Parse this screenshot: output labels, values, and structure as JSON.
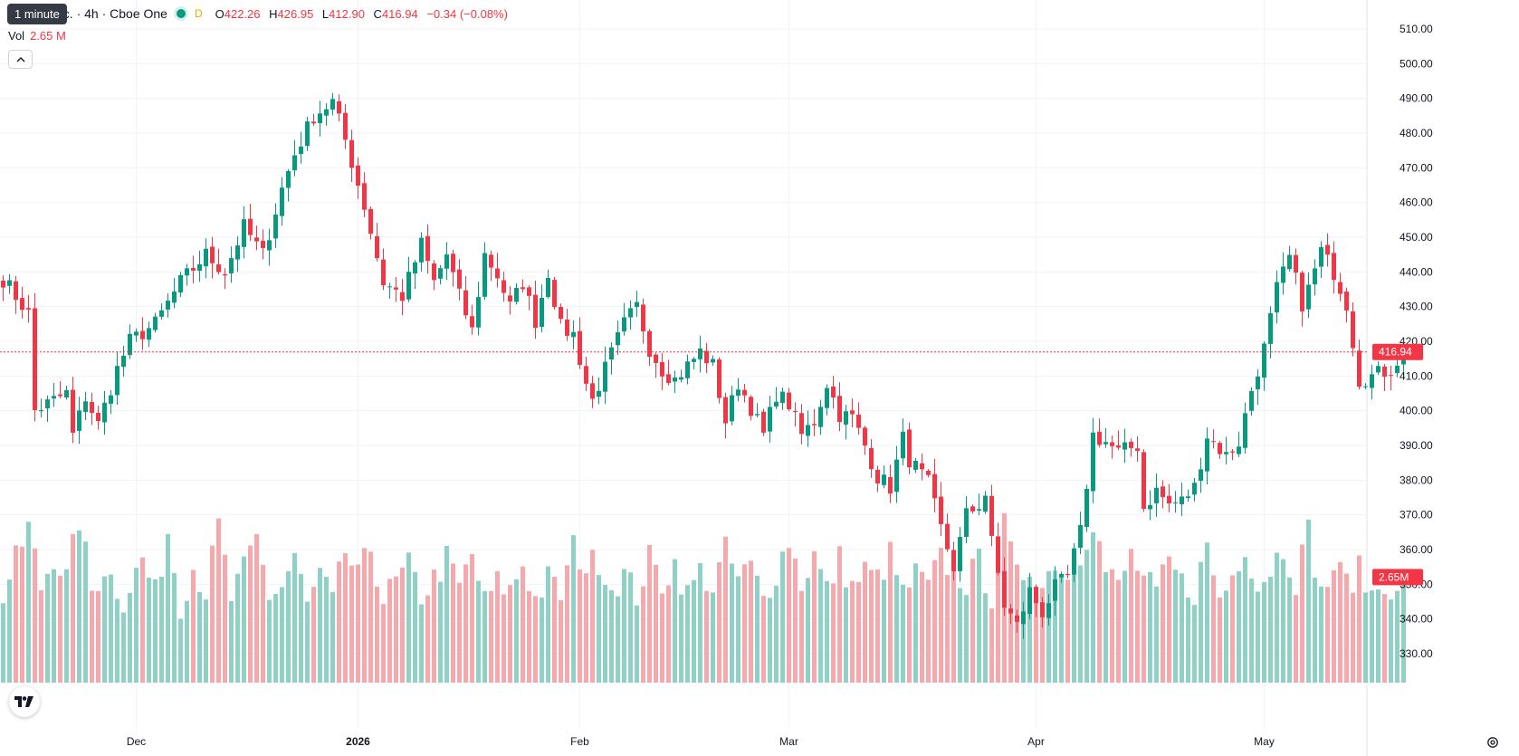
{
  "header": {
    "symbol_label": "nc. · 4h · Cboe One",
    "interval_chip": "D",
    "tooltip": "1 minute",
    "open_label": "O",
    "open": "422.26",
    "high_label": "H",
    "high": "426.95",
    "low_label": "L",
    "low": "412.90",
    "close_label": "C",
    "close": "416.94",
    "change": "−0.34 (−0.08%)"
  },
  "volume_legend": {
    "label": "Vol",
    "value": "2.65 M"
  },
  "price_scale": {
    "ticks": [
      "510.00",
      "500.00",
      "490.00",
      "480.00",
      "470.00",
      "460.00",
      "450.00",
      "440.00",
      "430.00",
      "420.00",
      "410.00",
      "400.00",
      "390.00",
      "380.00",
      "370.00",
      "360.00",
      "350.00",
      "340.00",
      "330.00"
    ],
    "last_price_label": "416.94",
    "last_volume_label": "2.65M"
  },
  "time_scale": {
    "labels": [
      "Dec",
      "2026",
      "Feb",
      "Mar",
      "Apr",
      "May"
    ]
  },
  "colors": {
    "up": "#089981",
    "down": "#f23645",
    "up_volume": "#8fd1c7",
    "down_volume": "#f6a9ac",
    "grid": "#f0f3fa",
    "text": "#131722"
  },
  "icons": {
    "logo": "tradingview-logo-icon",
    "settings": "gear-icon",
    "collapse": "chevron-up-icon"
  },
  "chart_data": {
    "type": "candlestick",
    "interval": "4h",
    "ylim": [
      320,
      512
    ],
    "last_price": 416.94,
    "x_axis_labels": [
      {
        "label": "Dec",
        "index": 21
      },
      {
        "label": "2026",
        "index": 56
      },
      {
        "label": "Feb",
        "index": 91
      },
      {
        "label": "Mar",
        "index": 124
      },
      {
        "label": "Apr",
        "index": 163
      },
      {
        "label": "May",
        "index": 199
      }
    ],
    "close_path": [
      [
        0,
        438
      ],
      [
        4,
        428
      ],
      [
        5,
        400
      ],
      [
        10,
        405
      ],
      [
        11,
        393
      ],
      [
        13,
        404
      ],
      [
        15,
        396
      ],
      [
        18,
        412
      ],
      [
        20,
        420
      ],
      [
        24,
        425
      ],
      [
        28,
        437
      ],
      [
        32,
        445
      ],
      [
        35,
        440
      ],
      [
        38,
        453
      ],
      [
        41,
        445
      ],
      [
        44,
        464
      ],
      [
        46,
        474
      ],
      [
        49,
        485
      ],
      [
        52,
        489
      ],
      [
        54,
        478
      ],
      [
        57,
        459
      ],
      [
        60,
        437
      ],
      [
        63,
        433
      ],
      [
        66,
        448
      ],
      [
        68,
        437
      ],
      [
        70,
        445
      ],
      [
        72,
        433
      ],
      [
        74,
        423
      ],
      [
        76,
        445
      ],
      [
        78,
        439
      ],
      [
        80,
        430
      ],
      [
        82,
        437
      ],
      [
        84,
        426
      ],
      [
        86,
        440
      ],
      [
        88,
        424
      ],
      [
        90,
        422
      ],
      [
        92,
        408
      ],
      [
        93,
        403
      ],
      [
        95,
        412
      ],
      [
        98,
        425
      ],
      [
        100,
        430
      ],
      [
        102,
        418
      ],
      [
        104,
        412
      ],
      [
        106,
        409
      ],
      [
        108,
        413
      ],
      [
        110,
        417
      ],
      [
        112,
        413
      ],
      [
        114,
        397
      ],
      [
        116,
        408
      ],
      [
        118,
        401
      ],
      [
        120,
        393
      ],
      [
        122,
        405
      ],
      [
        124,
        402
      ],
      [
        126,
        393
      ],
      [
        128,
        397
      ],
      [
        130,
        408
      ],
      [
        132,
        399
      ],
      [
        134,
        398
      ],
      [
        136,
        390
      ],
      [
        138,
        381
      ],
      [
        140,
        378
      ],
      [
        142,
        392
      ],
      [
        143,
        386
      ],
      [
        146,
        379
      ],
      [
        148,
        366
      ],
      [
        150,
        355
      ],
      [
        152,
        370
      ],
      [
        154,
        373
      ],
      [
        155,
        376
      ],
      [
        156,
        362
      ],
      [
        158,
        344
      ],
      [
        160,
        338
      ],
      [
        162,
        348
      ],
      [
        164,
        342
      ],
      [
        166,
        349
      ],
      [
        168,
        352
      ],
      [
        170,
        365
      ],
      [
        172,
        393
      ],
      [
        174,
        391
      ],
      [
        176,
        388
      ],
      [
        179,
        390
      ],
      [
        180,
        372
      ],
      [
        182,
        377
      ],
      [
        184,
        373
      ],
      [
        186,
        374
      ],
      [
        188,
        378
      ],
      [
        190,
        393
      ],
      [
        193,
        387
      ],
      [
        195,
        391
      ],
      [
        197,
        406
      ],
      [
        199,
        418
      ],
      [
        201,
        435
      ],
      [
        203,
        444
      ],
      [
        205,
        431
      ],
      [
        206,
        435
      ],
      [
        208,
        446
      ],
      [
        210,
        440
      ],
      [
        212,
        431
      ],
      [
        214,
        409
      ],
      [
        216,
        410
      ],
      [
        219,
        412
      ],
      [
        221,
        416.94
      ]
    ],
    "volume_path_millions": [
      [
        0,
        2.2
      ],
      [
        4,
        3.9
      ],
      [
        6,
        2.4
      ],
      [
        8,
        3.2
      ],
      [
        10,
        2.6
      ],
      [
        12,
        4.1
      ],
      [
        14,
        2.3
      ],
      [
        16,
        2.9
      ],
      [
        19,
        2.1
      ],
      [
        22,
        3.1
      ],
      [
        24,
        2.2
      ],
      [
        26,
        3.8
      ],
      [
        28,
        2.0
      ],
      [
        30,
        2.9
      ],
      [
        32,
        2.3
      ],
      [
        34,
        3.9
      ],
      [
        36,
        2.1
      ],
      [
        38,
        2.8
      ],
      [
        40,
        3.6
      ],
      [
        42,
        2.2
      ],
      [
        44,
        2.4
      ],
      [
        46,
        3.2
      ],
      [
        48,
        1.9
      ],
      [
        50,
        2.7
      ],
      [
        52,
        2.0
      ],
      [
        54,
        3.3
      ],
      [
        56,
        2.6
      ],
      [
        58,
        3.4
      ],
      [
        60,
        2.1
      ],
      [
        62,
        2.5
      ],
      [
        64,
        2.9
      ],
      [
        66,
        2.2
      ],
      [
        68,
        2.6
      ],
      [
        70,
        3.1
      ],
      [
        72,
        2.4
      ],
      [
        74,
        3.2
      ],
      [
        76,
        2.0
      ],
      [
        78,
        2.5
      ],
      [
        80,
        2.3
      ],
      [
        82,
        3.0
      ],
      [
        84,
        2.1
      ],
      [
        86,
        2.6
      ],
      [
        88,
        2.2
      ],
      [
        90,
        3.4
      ],
      [
        92,
        2.9
      ],
      [
        94,
        3.1
      ],
      [
        96,
        2.4
      ],
      [
        98,
        2.7
      ],
      [
        100,
        2.2
      ],
      [
        102,
        3.1
      ],
      [
        104,
        2.5
      ],
      [
        106,
        3.0
      ],
      [
        108,
        2.2
      ],
      [
        110,
        2.8
      ],
      [
        112,
        2.4
      ],
      [
        114,
        3.3
      ],
      [
        116,
        2.6
      ],
      [
        118,
        2.9
      ],
      [
        120,
        2.1
      ],
      [
        122,
        2.8
      ],
      [
        124,
        3.6
      ],
      [
        126,
        2.5
      ],
      [
        128,
        3.2
      ],
      [
        130,
        2.3
      ],
      [
        132,
        3.1
      ],
      [
        134,
        2.4
      ],
      [
        136,
        2.8
      ],
      [
        138,
        2.6
      ],
      [
        140,
        3.2
      ],
      [
        142,
        2.2
      ],
      [
        144,
        2.7
      ],
      [
        146,
        2.4
      ],
      [
        148,
        3.1
      ],
      [
        150,
        2.8
      ],
      [
        152,
        2.5
      ],
      [
        154,
        3.0
      ],
      [
        156,
        2.2
      ],
      [
        158,
        3.9
      ],
      [
        160,
        2.6
      ],
      [
        162,
        2.9
      ],
      [
        164,
        2.4
      ],
      [
        166,
        3.1
      ],
      [
        168,
        2.6
      ],
      [
        170,
        3.3
      ],
      [
        172,
        4.1
      ],
      [
        174,
        2.8
      ],
      [
        176,
        2.4
      ],
      [
        178,
        3.2
      ],
      [
        180,
        2.6
      ],
      [
        182,
        2.2
      ],
      [
        184,
        3.0
      ],
      [
        186,
        2.5
      ],
      [
        188,
        2.3
      ],
      [
        190,
        3.4
      ],
      [
        192,
        2.1
      ],
      [
        194,
        2.7
      ],
      [
        196,
        3.5
      ],
      [
        198,
        2.4
      ],
      [
        200,
        2.9
      ],
      [
        202,
        3.4
      ],
      [
        204,
        2.6
      ],
      [
        206,
        3.8
      ],
      [
        208,
        2.2
      ],
      [
        210,
        2.9
      ],
      [
        212,
        2.5
      ],
      [
        214,
        2.8
      ],
      [
        216,
        2.2
      ],
      [
        218,
        2.6
      ],
      [
        220,
        2.1
      ],
      [
        221,
        2.65
      ]
    ]
  }
}
